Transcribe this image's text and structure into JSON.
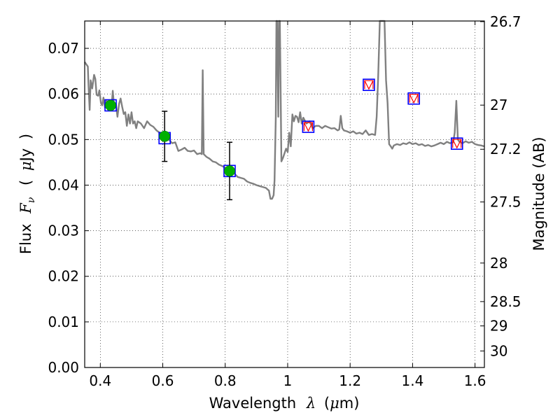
{
  "chart_data": {
    "type": "scatter",
    "xlabel": {
      "prefix": "Wavelength",
      "symbol": "λ",
      "unit_open": "(",
      "unit_mu": "μ",
      "unit_rest": "m)"
    },
    "ylabel": {
      "prefix": "Flux",
      "symbol": "F",
      "subscript": "ν",
      "unit_open": "(",
      "unit_mu": "μ",
      "unit_rest": "Jy",
      "unit_close": ")"
    },
    "ylabel_right": "Magnitude (AB)",
    "xlim": [
      0.35,
      1.63
    ],
    "ylim": [
      0.0,
      0.076
    ],
    "grid": true,
    "xticks": [
      0.4,
      0.6,
      0.8,
      1.0,
      1.2,
      1.4,
      1.6
    ],
    "xtick_labels": [
      "0.4",
      "0.6",
      "0.8",
      "1",
      "1.2",
      "1.4",
      "1.6"
    ],
    "yticks": [
      0.0,
      0.01,
      0.02,
      0.03,
      0.04,
      0.05,
      0.06,
      0.07
    ],
    "ytick_labels": [
      "0.00",
      "0.01",
      "0.02",
      "0.03",
      "0.04",
      "0.05",
      "0.06",
      "0.07"
    ],
    "right_ticks": [
      26.7,
      27,
      27.2,
      27.5,
      28,
      28.5,
      29,
      30
    ],
    "right_tick_labels": [
      "26.7",
      "27",
      "27.2",
      "27.5",
      "28",
      "28.5",
      "29",
      "30"
    ],
    "model_spectrum": {
      "color": "#808080",
      "points": [
        [
          0.35,
          0.067
        ],
        [
          0.36,
          0.066
        ],
        [
          0.362,
          0.062
        ],
        [
          0.366,
          0.0565
        ],
        [
          0.369,
          0.063
        ],
        [
          0.374,
          0.0612
        ],
        [
          0.38,
          0.0642
        ],
        [
          0.384,
          0.0633
        ],
        [
          0.388,
          0.0598
        ],
        [
          0.393,
          0.0596
        ],
        [
          0.397,
          0.0608
        ],
        [
          0.402,
          0.058
        ],
        [
          0.406,
          0.0575
        ],
        [
          0.41,
          0.0592
        ],
        [
          0.415,
          0.057
        ],
        [
          0.42,
          0.0585
        ],
        [
          0.425,
          0.0565
        ],
        [
          0.43,
          0.058
        ],
        [
          0.436,
          0.0572
        ],
        [
          0.44,
          0.0607
        ],
        [
          0.444,
          0.0575
        ],
        [
          0.45,
          0.0578
        ],
        [
          0.455,
          0.055
        ],
        [
          0.46,
          0.0578
        ],
        [
          0.465,
          0.059
        ],
        [
          0.47,
          0.0572
        ],
        [
          0.475,
          0.0556
        ],
        [
          0.48,
          0.056
        ],
        [
          0.485,
          0.053
        ],
        [
          0.49,
          0.0555
        ],
        [
          0.495,
          0.0535
        ],
        [
          0.5,
          0.056
        ],
        [
          0.505,
          0.0535
        ],
        [
          0.51,
          0.054
        ],
        [
          0.515,
          0.0525
        ],
        [
          0.52,
          0.054
        ],
        [
          0.53,
          0.0535
        ],
        [
          0.54,
          0.0525
        ],
        [
          0.55,
          0.054
        ],
        [
          0.56,
          0.0532
        ],
        [
          0.57,
          0.0528
        ],
        [
          0.58,
          0.052
        ],
        [
          0.59,
          0.0515
        ],
        [
          0.6,
          0.0508
        ],
        [
          0.61,
          0.0498
        ],
        [
          0.62,
          0.05
        ],
        [
          0.63,
          0.0492
        ],
        [
          0.64,
          0.0494
        ],
        [
          0.65,
          0.0475
        ],
        [
          0.66,
          0.0478
        ],
        [
          0.67,
          0.0482
        ],
        [
          0.68,
          0.0475
        ],
        [
          0.69,
          0.0474
        ],
        [
          0.7,
          0.0476
        ],
        [
          0.71,
          0.0468
        ],
        [
          0.72,
          0.047
        ],
        [
          0.725,
          0.0468
        ],
        [
          0.728,
          0.0652
        ],
        [
          0.731,
          0.0468
        ],
        [
          0.74,
          0.0462
        ],
        [
          0.75,
          0.0458
        ],
        [
          0.76,
          0.0452
        ],
        [
          0.77,
          0.045
        ],
        [
          0.78,
          0.0445
        ],
        [
          0.79,
          0.0442
        ],
        [
          0.8,
          0.0438
        ],
        [
          0.81,
          0.0432
        ],
        [
          0.82,
          0.0428
        ],
        [
          0.83,
          0.0425
        ],
        [
          0.84,
          0.0418
        ],
        [
          0.85,
          0.0416
        ],
        [
          0.86,
          0.0414
        ],
        [
          0.87,
          0.0408
        ],
        [
          0.88,
          0.0405
        ],
        [
          0.89,
          0.0403
        ],
        [
          0.9,
          0.04
        ],
        [
          0.91,
          0.0398
        ],
        [
          0.92,
          0.0396
        ],
        [
          0.93,
          0.0394
        ],
        [
          0.94,
          0.0388
        ],
        [
          0.945,
          0.037
        ],
        [
          0.95,
          0.037
        ],
        [
          0.955,
          0.0378
        ],
        [
          0.958,
          0.041
        ],
        [
          0.962,
          0.055
        ],
        [
          0.964,
          0.076
        ],
        [
          0.966,
          0.076
        ],
        [
          0.97,
          0.055
        ],
        [
          0.972,
          0.076
        ],
        [
          0.975,
          0.076
        ],
        [
          0.978,
          0.058
        ],
        [
          0.98,
          0.0452
        ],
        [
          0.985,
          0.046
        ],
        [
          0.99,
          0.047
        ],
        [
          0.995,
          0.048
        ],
        [
          1.0,
          0.0473
        ],
        [
          1.005,
          0.0515
        ],
        [
          1.01,
          0.0485
        ],
        [
          1.015,
          0.0555
        ],
        [
          1.02,
          0.054
        ],
        [
          1.025,
          0.0552
        ],
        [
          1.03,
          0.055
        ],
        [
          1.035,
          0.0538
        ],
        [
          1.04,
          0.056
        ],
        [
          1.045,
          0.0535
        ],
        [
          1.05,
          0.0548
        ],
        [
          1.06,
          0.0535
        ],
        [
          1.07,
          0.054
        ],
        [
          1.08,
          0.0525
        ],
        [
          1.09,
          0.053
        ],
        [
          1.1,
          0.053
        ],
        [
          1.11,
          0.0525
        ],
        [
          1.12,
          0.053
        ],
        [
          1.13,
          0.0527
        ],
        [
          1.14,
          0.0524
        ],
        [
          1.15,
          0.0525
        ],
        [
          1.16,
          0.052
        ],
        [
          1.165,
          0.0522
        ],
        [
          1.17,
          0.0552
        ],
        [
          1.175,
          0.0525
        ],
        [
          1.18,
          0.052
        ],
        [
          1.19,
          0.0518
        ],
        [
          1.2,
          0.0515
        ],
        [
          1.21,
          0.0518
        ],
        [
          1.22,
          0.0513
        ],
        [
          1.23,
          0.0515
        ],
        [
          1.24,
          0.0512
        ],
        [
          1.25,
          0.052
        ],
        [
          1.26,
          0.051
        ],
        [
          1.27,
          0.0512
        ],
        [
          1.28,
          0.051
        ],
        [
          1.285,
          0.055
        ],
        [
          1.29,
          0.064
        ],
        [
          1.295,
          0.076
        ],
        [
          1.31,
          0.076
        ],
        [
          1.315,
          0.063
        ],
        [
          1.32,
          0.058
        ],
        [
          1.325,
          0.049
        ],
        [
          1.33,
          0.0485
        ],
        [
          1.335,
          0.048
        ],
        [
          1.34,
          0.0487
        ],
        [
          1.35,
          0.049
        ],
        [
          1.36,
          0.0488
        ],
        [
          1.37,
          0.0492
        ],
        [
          1.38,
          0.049
        ],
        [
          1.39,
          0.0494
        ],
        [
          1.4,
          0.049
        ],
        [
          1.41,
          0.0492
        ],
        [
          1.42,
          0.0488
        ],
        [
          1.43,
          0.049
        ],
        [
          1.44,
          0.0486
        ],
        [
          1.45,
          0.0488
        ],
        [
          1.46,
          0.0485
        ],
        [
          1.47,
          0.0487
        ],
        [
          1.48,
          0.049
        ],
        [
          1.49,
          0.0493
        ],
        [
          1.5,
          0.049
        ],
        [
          1.51,
          0.0495
        ],
        [
          1.52,
          0.0492
        ],
        [
          1.53,
          0.0494
        ],
        [
          1.535,
          0.0515
        ],
        [
          1.54,
          0.0585
        ],
        [
          1.545,
          0.05
        ],
        [
          1.55,
          0.0495
        ],
        [
          1.56,
          0.0492
        ],
        [
          1.57,
          0.0496
        ],
        [
          1.58,
          0.0493
        ],
        [
          1.59,
          0.0495
        ],
        [
          1.6,
          0.049
        ],
        [
          1.61,
          0.0488
        ],
        [
          1.62,
          0.0487
        ],
        [
          1.63,
          0.0485
        ]
      ]
    },
    "observed_points": {
      "color": "#00b000",
      "points": [
        {
          "x": 0.433,
          "y": 0.0575,
          "yerr": null
        },
        {
          "x": 0.606,
          "y": 0.0507,
          "yerr": 0.0055
        },
        {
          "x": 0.814,
          "y": 0.0431,
          "yerr": 0.0063
        }
      ]
    },
    "model_bandpass_points": {
      "color": "#0000ff",
      "points": [
        {
          "x": 0.433,
          "y": 0.0575
        },
        {
          "x": 0.606,
          "y": 0.0503
        },
        {
          "x": 0.814,
          "y": 0.0431
        },
        {
          "x": 1.066,
          "y": 0.0528
        },
        {
          "x": 1.26,
          "y": 0.062
        },
        {
          "x": 1.404,
          "y": 0.059
        },
        {
          "x": 1.542,
          "y": 0.0491
        }
      ]
    },
    "upper_limits": {
      "color": "#ff0000",
      "points": [
        {
          "x": 1.066,
          "y": 0.0528
        },
        {
          "x": 1.26,
          "y": 0.062
        },
        {
          "x": 1.404,
          "y": 0.059
        },
        {
          "x": 1.542,
          "y": 0.0491
        }
      ]
    }
  }
}
